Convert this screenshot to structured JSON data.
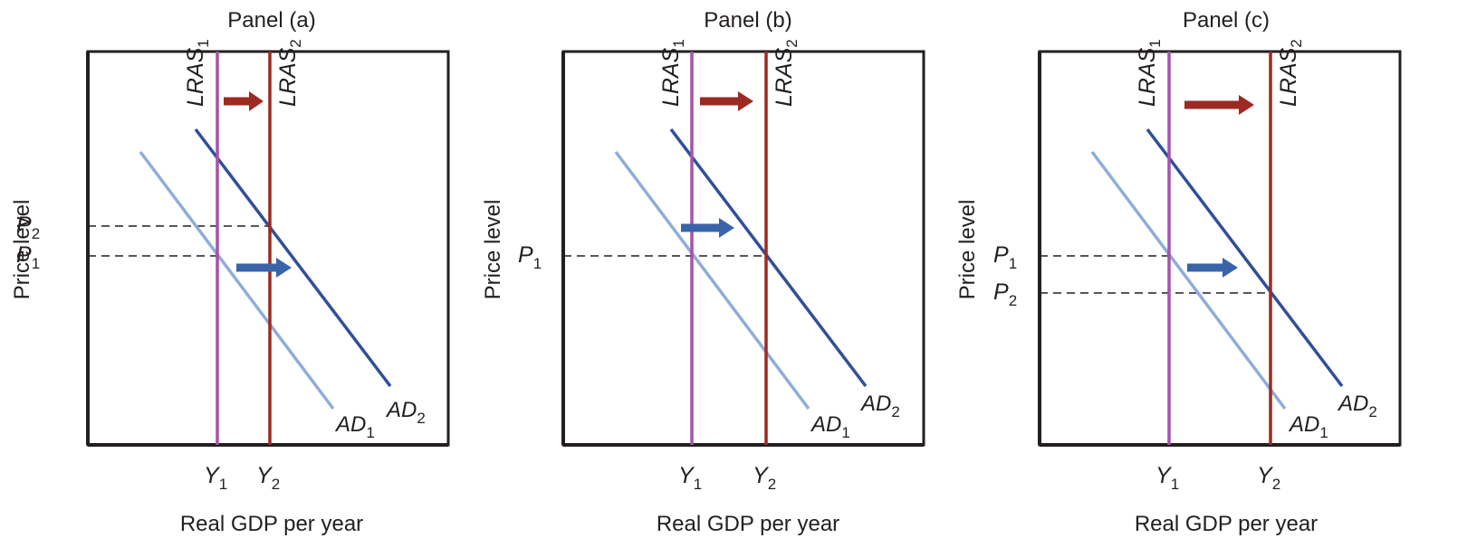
{
  "colors": {
    "lras1": "#a552a8",
    "lras2": "#9c2a22",
    "ad1": "#8fadd9",
    "ad2": "#2f4f9a",
    "shift_arrow_lras": "#9c2a22",
    "shift_arrow_ad": "#3a64a8",
    "axes": "#231f20",
    "dashed_guides": "#231f20"
  },
  "panels": [
    {
      "title": "Panel (a)",
      "y_axis_label": "Price level",
      "x_axis_label": "Real GDP per year",
      "curves": {
        "lras1": {
          "base": "LRAS",
          "sub": "1"
        },
        "lras2": {
          "base": "LRAS",
          "sub": "2"
        },
        "ad1": {
          "base": "AD",
          "sub": "1"
        },
        "ad2": {
          "base": "AD",
          "sub": "2"
        }
      },
      "x_ticks": [
        {
          "base": "Y",
          "sub": "1"
        },
        {
          "base": "Y",
          "sub": "2"
        }
      ],
      "y_ticks": [
        {
          "base": "P",
          "sub": "2"
        },
        {
          "base": "P",
          "sub": "1"
        }
      ],
      "icons": [
        "arrow-right-icon",
        "arrow-right-icon"
      ]
    },
    {
      "title": "Panel (b)",
      "y_axis_label": "Price level",
      "x_axis_label": "Real GDP per year",
      "curves": {
        "lras1": {
          "base": "LRAS",
          "sub": "1"
        },
        "lras2": {
          "base": "LRAS",
          "sub": "2"
        },
        "ad1": {
          "base": "AD",
          "sub": "1"
        },
        "ad2": {
          "base": "AD",
          "sub": "2"
        }
      },
      "x_ticks": [
        {
          "base": "Y",
          "sub": "1"
        },
        {
          "base": "Y",
          "sub": "2"
        }
      ],
      "y_ticks": [
        {
          "base": "P",
          "sub": "1"
        }
      ],
      "icons": [
        "arrow-right-icon",
        "arrow-right-icon"
      ]
    },
    {
      "title": "Panel (c)",
      "y_axis_label": "Price level",
      "x_axis_label": "Real GDP per year",
      "curves": {
        "lras1": {
          "base": "LRAS",
          "sub": "1"
        },
        "lras2": {
          "base": "LRAS",
          "sub": "2"
        },
        "ad1": {
          "base": "AD",
          "sub": "1"
        },
        "ad2": {
          "base": "AD",
          "sub": "2"
        }
      },
      "x_ticks": [
        {
          "base": "Y",
          "sub": "1"
        },
        {
          "base": "Y",
          "sub": "2"
        }
      ],
      "y_ticks": [
        {
          "base": "P",
          "sub": "1"
        },
        {
          "base": "P",
          "sub": "2"
        }
      ],
      "icons": [
        "arrow-right-icon",
        "arrow-right-icon"
      ]
    }
  ]
}
